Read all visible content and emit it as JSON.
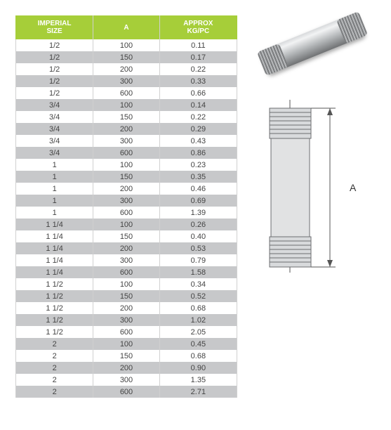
{
  "table": {
    "header_bg": "#a6ce39",
    "header_fg": "#ffffff",
    "row_alt_bg": "#c7c8ca",
    "row_bg": "#ffffff",
    "columns": [
      "IMPERIAL\nSIZE",
      "A",
      "APPROX\nKG/PC"
    ],
    "rows": [
      [
        "1/2",
        "100",
        "0.11"
      ],
      [
        "1/2",
        "150",
        "0.17"
      ],
      [
        "1/2",
        "200",
        "0.22"
      ],
      [
        "1/2",
        "300",
        "0.33"
      ],
      [
        "1/2",
        "600",
        "0.66"
      ],
      [
        "3/4",
        "100",
        "0.14"
      ],
      [
        "3/4",
        "150",
        "0.22"
      ],
      [
        "3/4",
        "200",
        "0.29"
      ],
      [
        "3/4",
        "300",
        "0.43"
      ],
      [
        "3/4",
        "600",
        "0.86"
      ],
      [
        "1",
        "100",
        "0.23"
      ],
      [
        "1",
        "150",
        "0.35"
      ],
      [
        "1",
        "200",
        "0.46"
      ],
      [
        "1",
        "300",
        "0.69"
      ],
      [
        "1",
        "600",
        "1.39"
      ],
      [
        "1 1/4",
        "100",
        "0.26"
      ],
      [
        "1 1/4",
        "150",
        "0.40"
      ],
      [
        "1 1/4",
        "200",
        "0.53"
      ],
      [
        "1 1/4",
        "300",
        "0.79"
      ],
      [
        "1 1/4",
        "600",
        "1.58"
      ],
      [
        "1 1/2",
        "100",
        "0.34"
      ],
      [
        "1 1/2",
        "150",
        "0.52"
      ],
      [
        "1 1/2",
        "200",
        "0.68"
      ],
      [
        "1 1/2",
        "300",
        "1.02"
      ],
      [
        "1 1/2",
        "600",
        "2.05"
      ],
      [
        "2",
        "100",
        "0.45"
      ],
      [
        "2",
        "150",
        "0.68"
      ],
      [
        "2",
        "200",
        "0.90"
      ],
      [
        "2",
        "300",
        "1.35"
      ],
      [
        "2",
        "600",
        "2.71"
      ]
    ]
  },
  "diagram": {
    "dimension_label": "A"
  }
}
